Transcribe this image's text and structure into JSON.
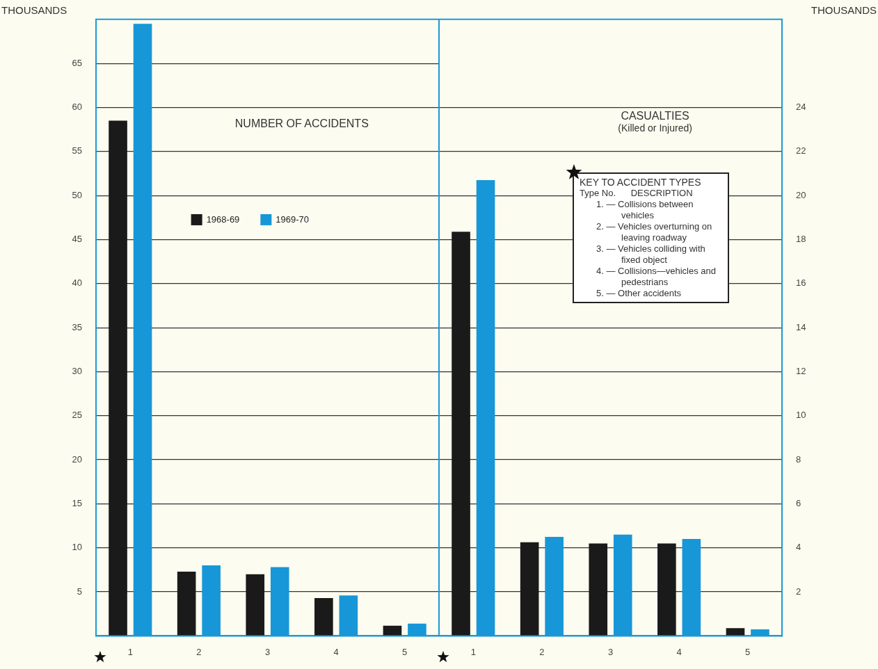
{
  "chart_data": [
    {
      "type": "bar",
      "title": "NUMBER OF ACCIDENTS",
      "ylabel": "THOUSANDS",
      "categories": [
        "1",
        "2",
        "3",
        "4",
        "5"
      ],
      "series": [
        {
          "name": "1968-69",
          "color": "#1a1a1a",
          "values": [
            58.5,
            7.3,
            7.0,
            4.3,
            1.15
          ]
        },
        {
          "name": "1969-70",
          "color": "#1797d8",
          "values": [
            69.5,
            8.0,
            7.8,
            4.6,
            1.4
          ]
        }
      ],
      "ylim": [
        0,
        70
      ],
      "yticks": [
        5,
        10,
        15,
        20,
        25,
        30,
        35,
        40,
        45,
        50,
        55,
        60,
        65
      ],
      "grid": "y",
      "legend": "top"
    },
    {
      "type": "bar",
      "title": "CASUALTIES",
      "subtitle": "(Killed or Injured)",
      "ylabel": "THOUSANDS",
      "categories": [
        "1",
        "2",
        "3",
        "4",
        "5"
      ],
      "series": [
        {
          "color": "#1a1a1a",
          "values": [
            18.35,
            4.25,
            4.2,
            4.2,
            0.35
          ]
        },
        {
          "color": "#1797d8",
          "values": [
            20.7,
            4.5,
            4.6,
            4.4,
            0.3
          ]
        }
      ],
      "ylim": [
        0,
        28
      ],
      "yticks": [
        2,
        4,
        6,
        8,
        10,
        12,
        14,
        16,
        18,
        20,
        22,
        24
      ],
      "grid": "y",
      "annotations": [
        "KEY TO ACCIDENT TYPES",
        "Type No.      DESCRIPTION",
        "1. — Collisions between vehicles",
        "2. — Vehicles overturning on leaving roadway",
        "3. — Vehicles colliding with fixed object",
        "4. — Collisions—vehicles and pedestrians",
        "5. — Other accidents"
      ]
    }
  ]
}
